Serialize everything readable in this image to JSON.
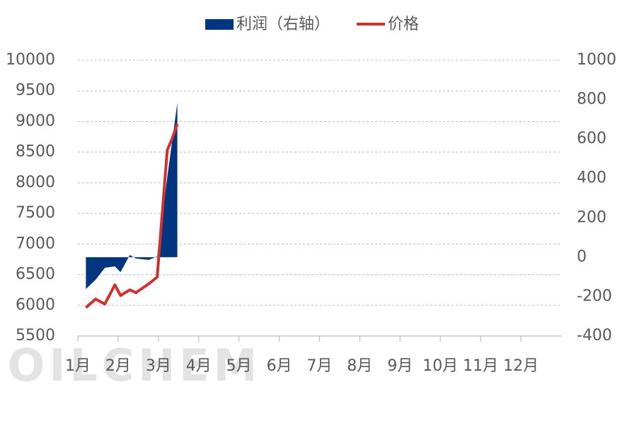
{
  "chart_data": {
    "type": "line-area",
    "watermark": "OILCHEM",
    "x": [
      1.2,
      1.44,
      1.67,
      1.92,
      2.06,
      2.29,
      2.44,
      2.76,
      2.97,
      3.22,
      3.34,
      3.47
    ],
    "xlim": [
      1,
      13
    ],
    "xticks": [
      {
        "value": 1,
        "label": "1月"
      },
      {
        "value": 2,
        "label": "2月"
      },
      {
        "value": 3,
        "label": "3月"
      },
      {
        "value": 4,
        "label": "4月"
      },
      {
        "value": 5,
        "label": "5月"
      },
      {
        "value": 6,
        "label": "6月"
      },
      {
        "value": 7,
        "label": "7月"
      },
      {
        "value": 8,
        "label": "8月"
      },
      {
        "value": 9,
        "label": "9月"
      },
      {
        "value": 10,
        "label": "10月"
      },
      {
        "value": 11,
        "label": "11月"
      },
      {
        "value": 12,
        "label": "12月"
      }
    ],
    "ylim": [
      5500,
      10000
    ],
    "yticks": [
      5500,
      6000,
      6500,
      7000,
      7500,
      8000,
      8500,
      9000,
      9500,
      10000
    ],
    "y2lim": [
      -400,
      1000
    ],
    "y2ticks": [
      -400,
      -200,
      0,
      200,
      400,
      600,
      800,
      1000
    ],
    "grid": true,
    "series": [
      {
        "name": "利润（右轴）",
        "kind": "area",
        "axis": "y2",
        "color": "#003580",
        "values": [
          -162,
          -115,
          -54,
          -47,
          -76,
          11,
          -7,
          -14,
          4,
          406,
          586,
          784
        ]
      },
      {
        "name": "价格",
        "kind": "line",
        "color": "#d0312d",
        "values": [
          5963,
          6102,
          6021,
          6333,
          6160,
          6252,
          6206,
          6350,
          6461,
          8532,
          8718,
          8960
        ]
      }
    ]
  }
}
